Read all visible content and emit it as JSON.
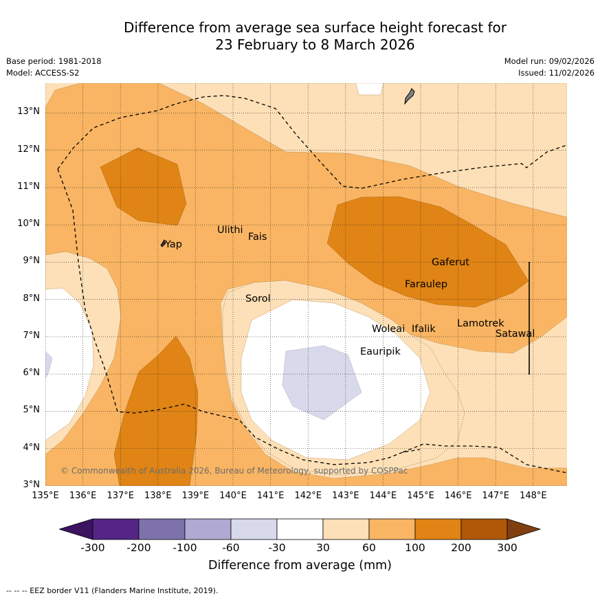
{
  "title": {
    "line1": "Difference from average sea surface height forecast for",
    "line2": "23 February to 8 March 2026"
  },
  "meta": {
    "base_period": "Base period: 1981-2018",
    "model": "Model: ACCESS-S2",
    "model_run": "Model run: 09/02/2026",
    "issued": "Issued: 11/02/2026"
  },
  "axes": {
    "lat_labels": [
      "13°N",
      "12°N",
      "11°N",
      "10°N",
      "9°N",
      "8°N",
      "7°N",
      "6°N",
      "5°N",
      "4°N",
      "3°N"
    ],
    "lon_labels": [
      "135°E",
      "136°E",
      "137°E",
      "138°E",
      "139°E",
      "140°E",
      "141°E",
      "142°E",
      "143°E",
      "144°E",
      "145°E",
      "146°E",
      "147°E",
      "148°E"
    ]
  },
  "places": [
    {
      "name": "Yap"
    },
    {
      "name": "Ulithi"
    },
    {
      "name": "Fais"
    },
    {
      "name": "Sorol"
    },
    {
      "name": "Gaferut"
    },
    {
      "name": "Faraulep"
    },
    {
      "name": "Woleai"
    },
    {
      "name": "Ifalik"
    },
    {
      "name": "Lamotrek"
    },
    {
      "name": "Satawal"
    },
    {
      "name": "Eauripik"
    }
  ],
  "copyright": "© Commonwealth of Australia 2026, Bureau of Meteorology, supported by COSPPac",
  "colorbar": {
    "ticks": [
      "-300",
      "-200",
      "-100",
      "-60",
      "-30",
      "30",
      "60",
      "100",
      "200",
      "300"
    ],
    "title": "Difference from average (mm)",
    "colors": [
      "#3b1360",
      "#552586",
      "#7e72ac",
      "#b0a9d1",
      "#d8d9eb",
      "#ffffff",
      "#fde0b7",
      "#f9b563",
      "#e08415",
      "#b05708",
      "#7f3f10"
    ]
  },
  "footer": "--  --  -- EEZ border V11 (Flanders Marine Institute, 2019).",
  "palette": {
    "c30_60": "#fde0b7",
    "c60_100": "#f9b563",
    "c100_200": "#e08415",
    "cm30_30": "#ffffff",
    "cm60_m30": "#d8d9eb",
    "land": "#808080"
  }
}
